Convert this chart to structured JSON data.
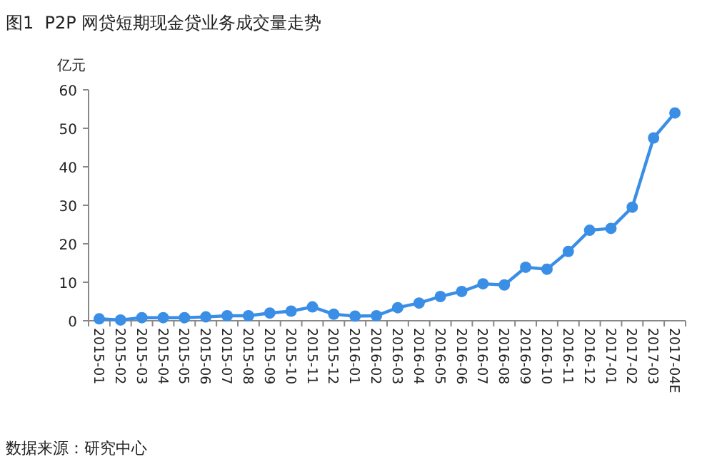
{
  "chart_data": {
    "type": "line",
    "title": "图1  P2P 网贷短期现金贷业务成交量走势",
    "ylabel": "亿元",
    "categories": [
      "2015-01",
      "2015-02",
      "2015-03",
      "2015-04",
      "2015-05",
      "2015-06",
      "2015-07",
      "2015-08",
      "2015-09",
      "2015-10",
      "2015-11",
      "2015-12",
      "2016-01",
      "2016-02",
      "2016-03",
      "2016-04",
      "2016-05",
      "2016-06",
      "2016-07",
      "2016-08",
      "2016-09",
      "2016-10",
      "2016-11",
      "2016-12",
      "2017-01",
      "2017-02",
      "2017-03",
      "2017-04E"
    ],
    "series": [
      {
        "color": "#3a8ee6",
        "values": [
          0.5,
          0.2,
          0.8,
          0.8,
          0.8,
          1,
          1.3,
          1.3,
          2,
          2.5,
          3.6,
          1.7,
          1.2,
          1.3,
          3.4,
          4.6,
          6.3,
          7.6,
          9.6,
          9.3,
          13.9,
          13.4,
          18,
          23.5,
          24,
          29.5,
          47.5,
          54
        ]
      }
    ],
    "ylim": [
      0,
      60
    ],
    "yticks": [
      0,
      10,
      20,
      30,
      40,
      50,
      60
    ],
    "marker": "circle",
    "annotations": [
      "数据来源：研究中心"
    ]
  }
}
